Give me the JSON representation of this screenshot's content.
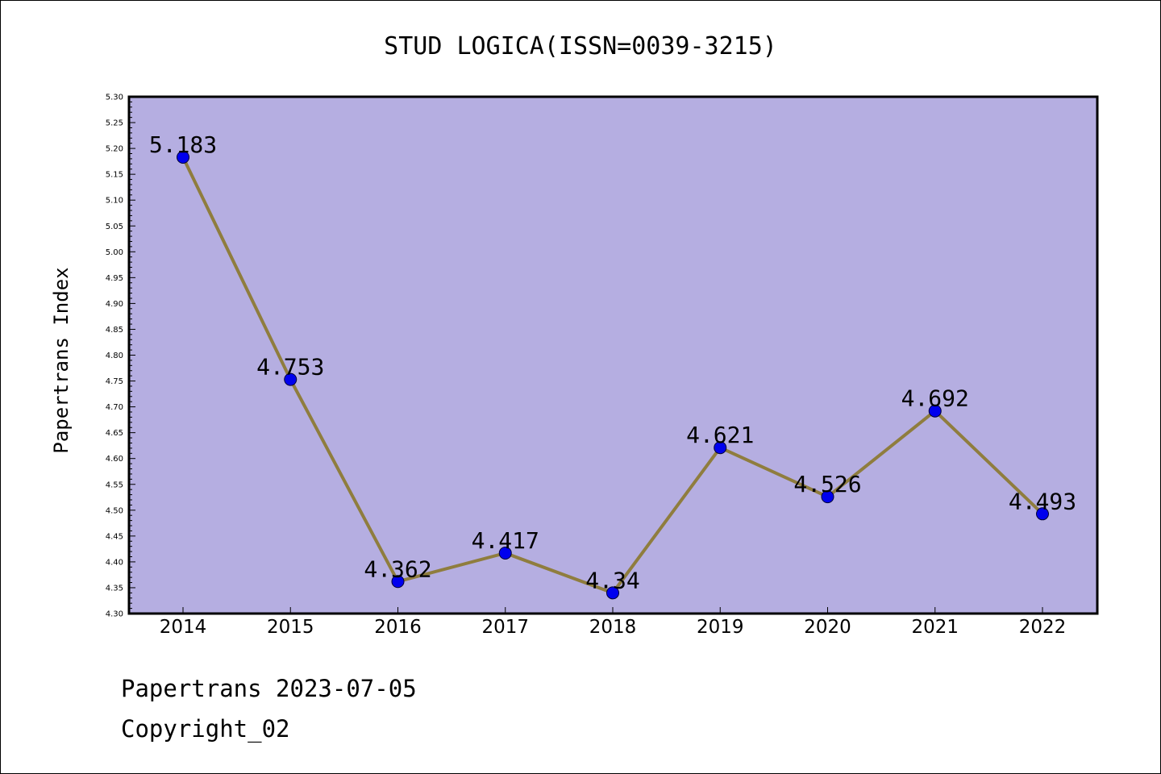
{
  "chart_data": {
    "type": "line",
    "title": "STUD LOGICA(ISSN=0039-3215)",
    "ylabel": "Papertrans Index",
    "xlabel": "",
    "categories": [
      "2014",
      "2015",
      "2016",
      "2017",
      "2018",
      "2019",
      "2020",
      "2021",
      "2022"
    ],
    "values": [
      5.183,
      4.753,
      4.362,
      4.417,
      4.34,
      4.621,
      4.526,
      4.692,
      4.493
    ],
    "data_labels": [
      "5.183",
      "4.753",
      "4.362",
      "4.417",
      "4.34",
      "4.621",
      "4.526",
      "4.692",
      "4.493"
    ],
    "ylim": [
      4.3,
      5.3
    ],
    "ytick_step": 0.05,
    "ytick_labels": [
      "4.30",
      "4.35",
      "4.40",
      "4.45",
      "4.50",
      "4.55",
      "4.60",
      "4.65",
      "4.70",
      "4.75",
      "4.80",
      "4.85",
      "4.90",
      "4.95",
      "5.00",
      "5.05",
      "5.10",
      "5.15",
      "5.20",
      "5.25",
      "5.30"
    ],
    "grid": false,
    "colors": {
      "plot_background": "#b5aee1",
      "line": "#8f7d3e",
      "marker": "#0000ee",
      "marker_edge": "#000033"
    }
  },
  "footer": {
    "line1": "Papertrans 2023-07-05",
    "line2": "Copyright_02"
  }
}
